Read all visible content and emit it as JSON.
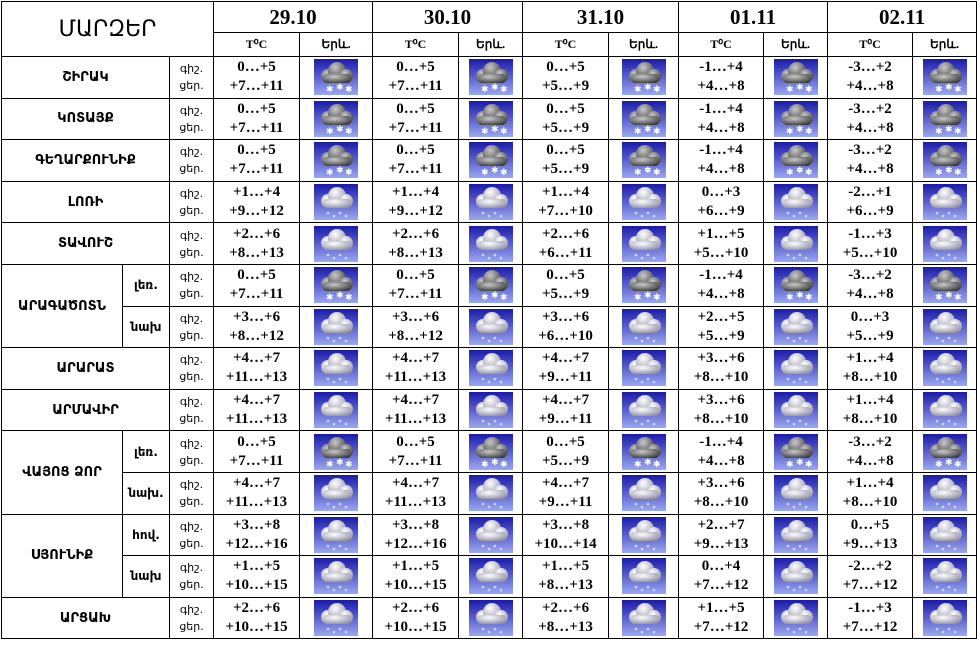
{
  "header": {
    "title": "ՄԱՐԶԵՐ",
    "dates": [
      "29.10",
      "30.10",
      "31.10",
      "01.11",
      "02.11"
    ],
    "temp_label": "T⁰C",
    "sky_label": "Երև."
  },
  "regions": [
    {
      "name": "ՇԻՐԱԿ",
      "rows": [
        {
          "night_label": "գիշ.",
          "day_label": "ցեր.",
          "days": [
            {
              "night": "0…+5",
              "day": "+7…+11",
              "icon": "snow"
            },
            {
              "night": "0…+5",
              "day": "+7…+11",
              "icon": "snow"
            },
            {
              "night": "0…+5",
              "day": "+5…+9",
              "icon": "snow"
            },
            {
              "night": "-1…+4",
              "day": "+4…+8",
              "icon": "snow"
            },
            {
              "night": "-3…+2",
              "day": "+4…+8",
              "icon": "snow"
            }
          ]
        }
      ]
    },
    {
      "name": "ԿՈՏԱՅՔ",
      "rows": [
        {
          "night_label": "գիշ.",
          "day_label": "ցեր.",
          "days": [
            {
              "night": "0…+5",
              "day": "+7…+11",
              "icon": "snow"
            },
            {
              "night": "0…+5",
              "day": "+7…+11",
              "icon": "snow"
            },
            {
              "night": "0…+5",
              "day": "+5…+9",
              "icon": "snow"
            },
            {
              "night": "-1…+4",
              "day": "+4…+8",
              "icon": "snow"
            },
            {
              "night": "-3…+2",
              "day": "+4…+8",
              "icon": "snow"
            }
          ]
        }
      ]
    },
    {
      "name": "ԳԵՂԱՐՔՈՒՆԻՔ",
      "rows": [
        {
          "night_label": "գիշ.",
          "day_label": "ցեր.",
          "days": [
            {
              "night": "0…+5",
              "day": "+7…+11",
              "icon": "snow"
            },
            {
              "night": "0…+5",
              "day": "+7…+11",
              "icon": "snow"
            },
            {
              "night": "0…+5",
              "day": "+5…+9",
              "icon": "snow"
            },
            {
              "night": "-1…+4",
              "day": "+4…+8",
              "icon": "snow"
            },
            {
              "night": "-3…+2",
              "day": "+4…+8",
              "icon": "snow"
            }
          ]
        }
      ]
    },
    {
      "name": "ԼՈՌԻ",
      "rows": [
        {
          "night_label": "գիշ.",
          "day_label": "ցեր.",
          "days": [
            {
              "night": "+1…+4",
              "day": "+9…+12",
              "icon": "rain"
            },
            {
              "night": "+1…+4",
              "day": "+9…+12",
              "icon": "rain"
            },
            {
              "night": "+1…+4",
              "day": "+7…+10",
              "icon": "rain"
            },
            {
              "night": "0…+3",
              "day": "+6…+9",
              "icon": "rain"
            },
            {
              "night": "-2…+1",
              "day": "+6…+9",
              "icon": "rain"
            }
          ]
        }
      ]
    },
    {
      "name": "ՏԱՎՈՒՇ",
      "rows": [
        {
          "night_label": "գիշ.",
          "day_label": "ցեր.",
          "days": [
            {
              "night": "+2…+6",
              "day": "+8…+13",
              "icon": "rain"
            },
            {
              "night": "+2…+6",
              "day": "+8…+13",
              "icon": "rain"
            },
            {
              "night": "+2…+6",
              "day": "+6…+11",
              "icon": "rain"
            },
            {
              "night": "+1…+5",
              "day": "+5…+10",
              "icon": "rain"
            },
            {
              "night": "-1…+3",
              "day": "+5…+10",
              "icon": "rain"
            }
          ]
        }
      ]
    },
    {
      "name": "ԱՐԱԳԱԾՈՏՆ",
      "rows": [
        {
          "sub": "լեռ.",
          "night_label": "գիշ.",
          "day_label": "ցեր.",
          "days": [
            {
              "night": "0…+5",
              "day": "+7…+11",
              "icon": "snow"
            },
            {
              "night": "0…+5",
              "day": "+7…+11",
              "icon": "snow"
            },
            {
              "night": "0…+5",
              "day": "+5…+9",
              "icon": "snow"
            },
            {
              "night": "-1…+4",
              "day": "+4…+8",
              "icon": "snow"
            },
            {
              "night": "-3…+2",
              "day": "+4…+8",
              "icon": "snow"
            }
          ]
        },
        {
          "sub": "նախ",
          "night_label": "գիշ.",
          "day_label": "ցեր.",
          "days": [
            {
              "night": "+3…+6",
              "day": "+8…+12",
              "icon": "rain"
            },
            {
              "night": "+3…+6",
              "day": "+8…+12",
              "icon": "rain"
            },
            {
              "night": "+3…+6",
              "day": "+6…+10",
              "icon": "rain"
            },
            {
              "night": "+2…+5",
              "day": "+5…+9",
              "icon": "rain"
            },
            {
              "night": "0…+3",
              "day": "+5…+9",
              "icon": "rain"
            }
          ]
        }
      ]
    },
    {
      "name": "ԱՐԱՐԱՏ",
      "rows": [
        {
          "night_label": "գիշ.",
          "day_label": "ցեր.",
          "days": [
            {
              "night": "+4…+7",
              "day": "+11…+13",
              "icon": "rain"
            },
            {
              "night": "+4…+7",
              "day": "+11…+13",
              "icon": "rain"
            },
            {
              "night": "+4…+7",
              "day": "+9…+11",
              "icon": "rain"
            },
            {
              "night": "+3…+6",
              "day": "+8…+10",
              "icon": "rain"
            },
            {
              "night": "+1…+4",
              "day": "+8…+10",
              "icon": "rain"
            }
          ]
        }
      ]
    },
    {
      "name": "ԱՐՄԱՎԻՐ",
      "rows": [
        {
          "night_label": "գիշ.",
          "day_label": "ցեր.",
          "days": [
            {
              "night": "+4…+7",
              "day": "+11…+13",
              "icon": "rain"
            },
            {
              "night": "+4…+7",
              "day": "+11…+13",
              "icon": "rain"
            },
            {
              "night": "+4…+7",
              "day": "+9…+11",
              "icon": "rain"
            },
            {
              "night": "+3…+6",
              "day": "+8…+10",
              "icon": "rain"
            },
            {
              "night": "+1…+4",
              "day": "+8…+10",
              "icon": "rain"
            }
          ]
        }
      ]
    },
    {
      "name": "ՎԱՅՈՑ ՁՈՐ",
      "rows": [
        {
          "sub": "լեռ.",
          "night_label": "գիշ.",
          "day_label": "ցեր.",
          "days": [
            {
              "night": "0…+5",
              "day": "+7…+11",
              "icon": "snow"
            },
            {
              "night": "0…+5",
              "day": "+7…+11",
              "icon": "snow"
            },
            {
              "night": "0…+5",
              "day": "+5…+9",
              "icon": "snow"
            },
            {
              "night": "-1…+4",
              "day": "+4…+8",
              "icon": "snow"
            },
            {
              "night": "-3…+2",
              "day": "+4…+8",
              "icon": "snow"
            }
          ]
        },
        {
          "sub": "նախ.",
          "night_label": "գիշ.",
          "day_label": "ցեր.",
          "days": [
            {
              "night": "+4…+7",
              "day": "+11…+13",
              "icon": "rain"
            },
            {
              "night": "+4…+7",
              "day": "+11…+13",
              "icon": "rain"
            },
            {
              "night": "+4…+7",
              "day": "+9…+11",
              "icon": "rain"
            },
            {
              "night": "+3…+6",
              "day": "+8…+10",
              "icon": "rain"
            },
            {
              "night": "+1…+4",
              "day": "+8…+10",
              "icon": "rain"
            }
          ]
        }
      ]
    },
    {
      "name": "ՍՅՈՒՆԻՔ",
      "rows": [
        {
          "sub": "հով.",
          "night_label": "գիշ.",
          "day_label": "ցեր.",
          "days": [
            {
              "night": "+3…+8",
              "day": "+12…+16",
              "icon": "rain"
            },
            {
              "night": "+3…+8",
              "day": "+12…+16",
              "icon": "rain"
            },
            {
              "night": "+3…+8",
              "day": "+10…+14",
              "icon": "rain"
            },
            {
              "night": "+2…+7",
              "day": "+9…+13",
              "icon": "rain"
            },
            {
              "night": "0…+5",
              "day": "+9…+13",
              "icon": "rain"
            }
          ]
        },
        {
          "sub": "նախ",
          "night_label": "գիշ.",
          "day_label": "ցեր.",
          "days": [
            {
              "night": "+1…+5",
              "day": "+10…+15",
              "icon": "rain"
            },
            {
              "night": "+1…+5",
              "day": "+10…+15",
              "icon": "rain"
            },
            {
              "night": "+1…+5",
              "day": "+8…+13",
              "icon": "rain"
            },
            {
              "night": "0…+4",
              "day": "+7…+12",
              "icon": "rain"
            },
            {
              "night": "-2…+2",
              "day": "+7…+12",
              "icon": "rain"
            }
          ]
        }
      ]
    },
    {
      "name": "ԱՐՑԱԽ",
      "rows": [
        {
          "night_label": "գիշ.",
          "day_label": "ցեր.",
          "days": [
            {
              "night": "+2…+6",
              "day": "+10…+15",
              "icon": "rain"
            },
            {
              "night": "+2…+6",
              "day": "+10…+15",
              "icon": "rain"
            },
            {
              "night": "+2…+6",
              "day": "+8…+13",
              "icon": "rain"
            },
            {
              "night": "+1…+5",
              "day": "+7…+12",
              "icon": "rain"
            },
            {
              "night": "-1…+3",
              "day": "+7…+12",
              "icon": "rain"
            }
          ]
        }
      ]
    }
  ]
}
